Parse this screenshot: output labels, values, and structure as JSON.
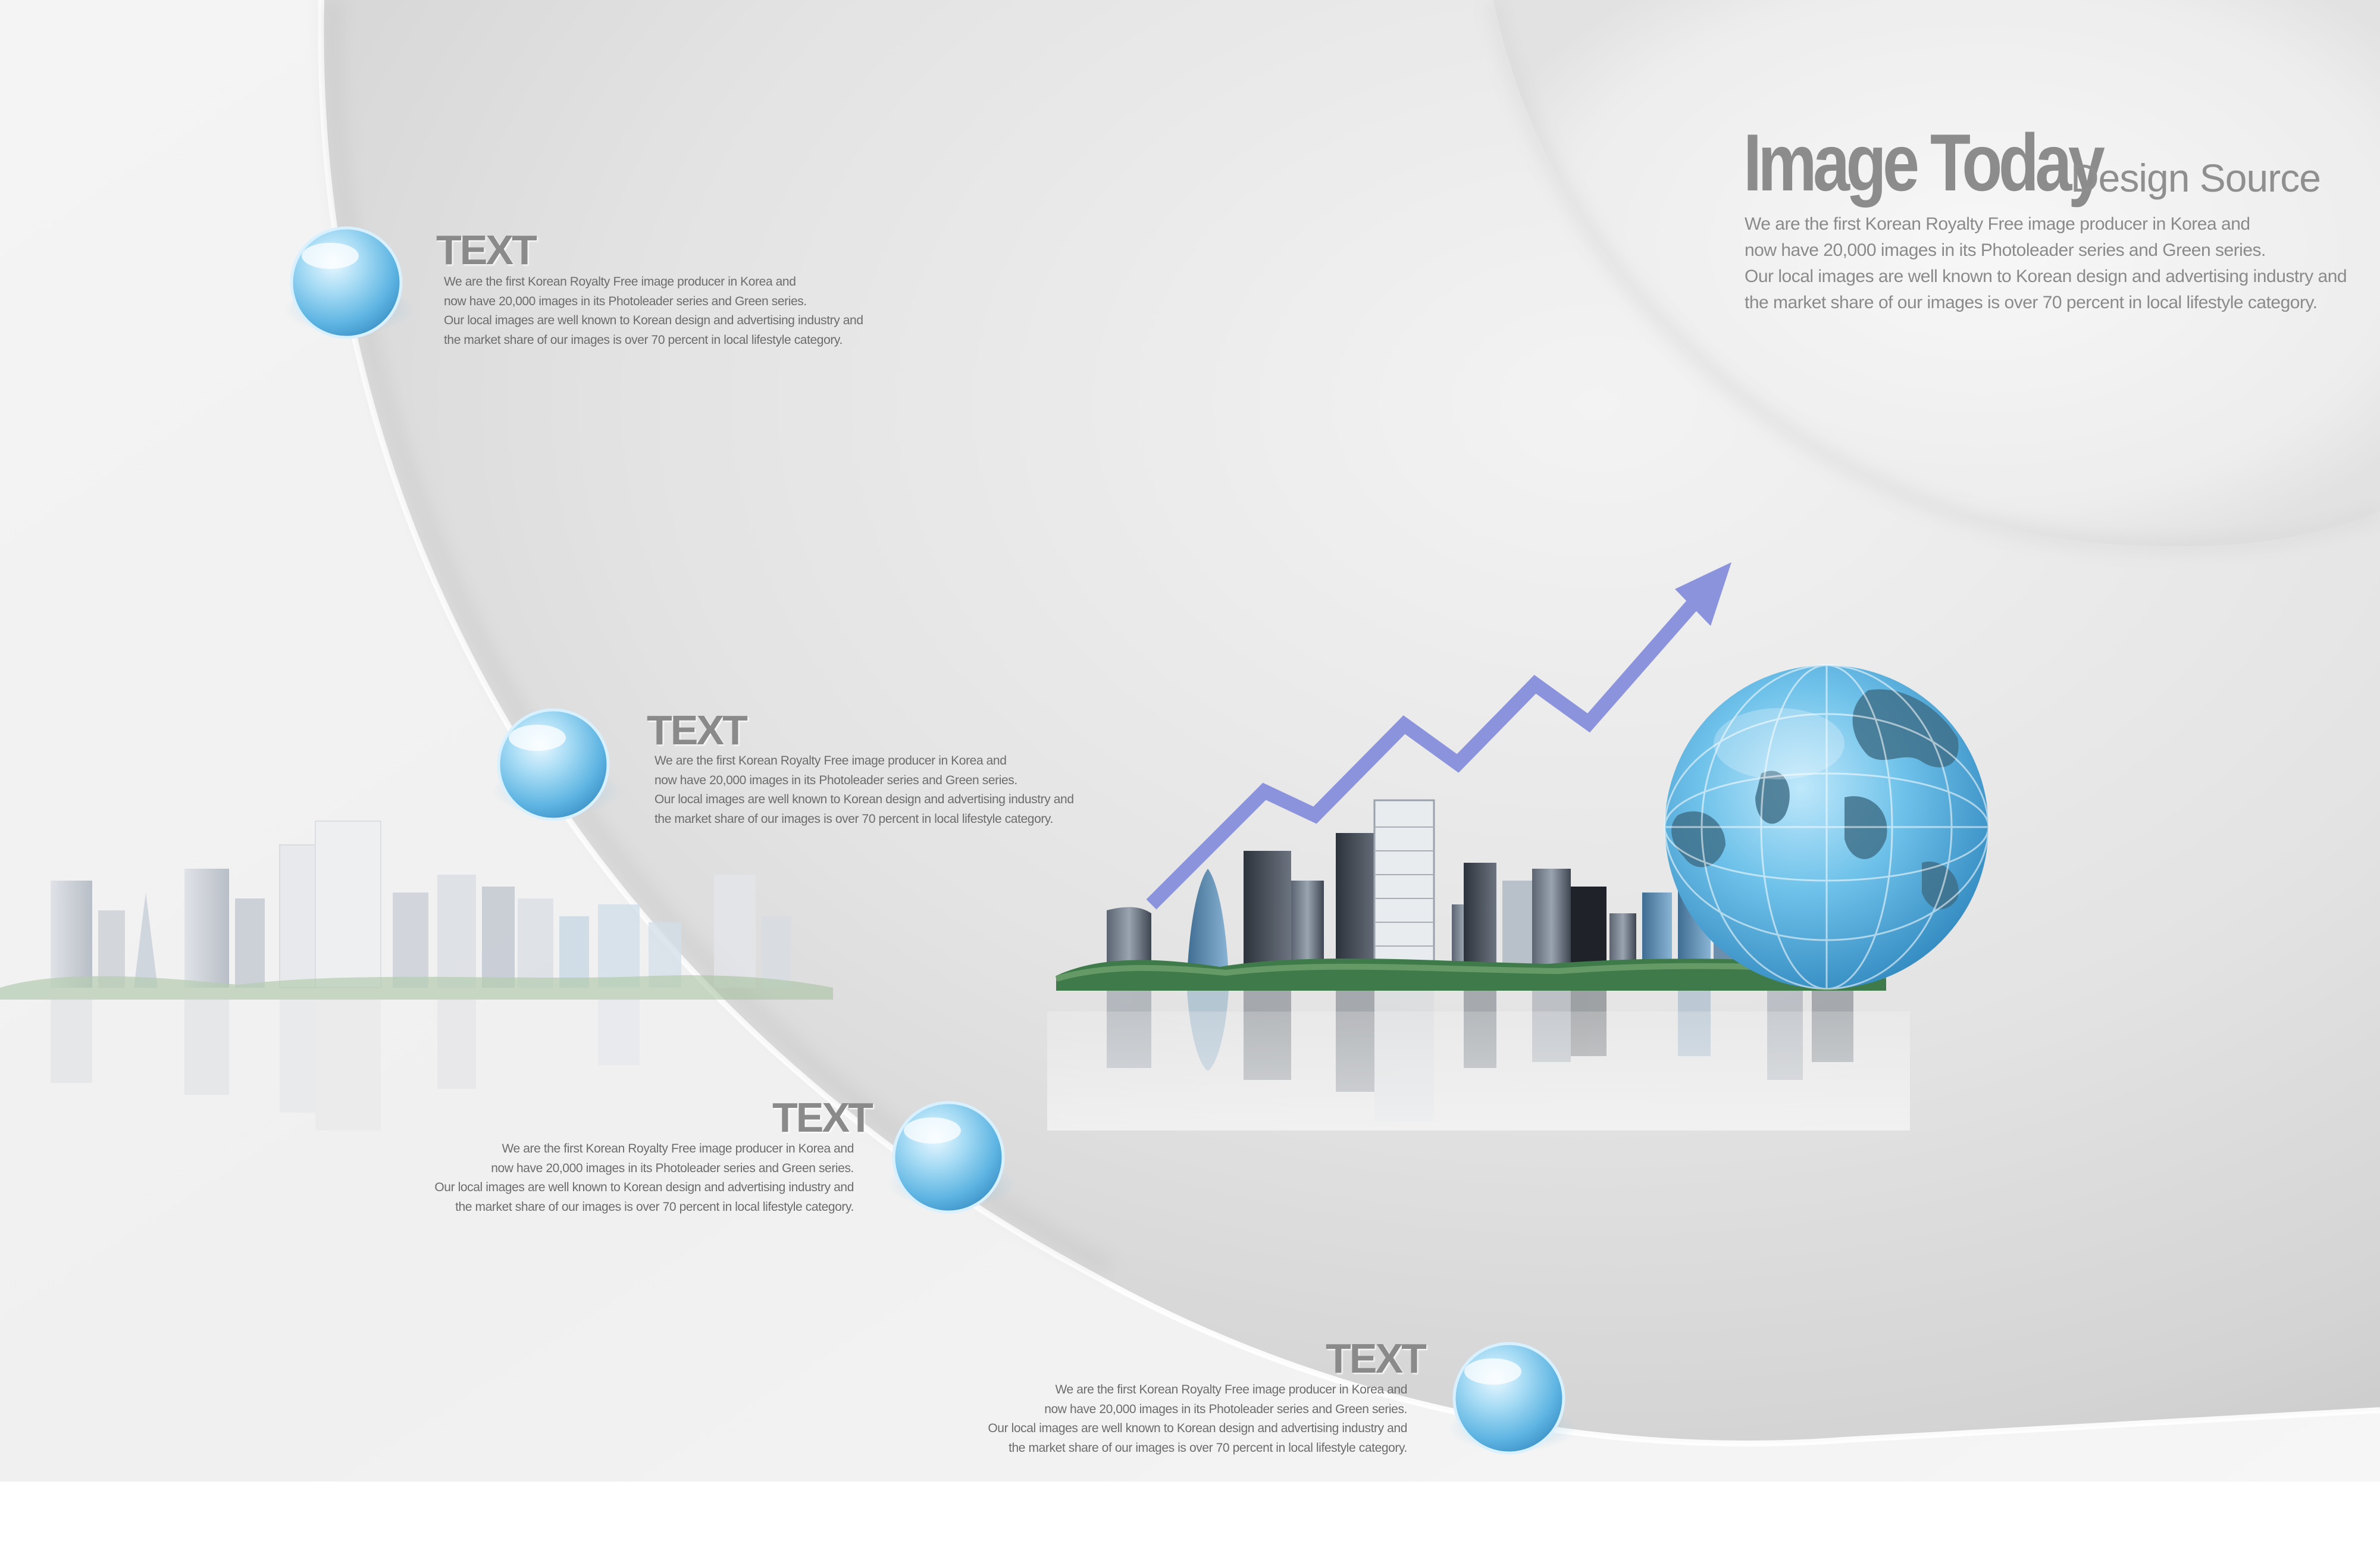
{
  "brand": {
    "title": "Image Today",
    "subtitle": "Design Source",
    "description": [
      "We are the first Korean Royalty Free image producer in Korea and",
      "now have 20,000 images in its Photoleader series and Green series.",
      "Our local images are well known to Korean design and advertising industry and",
      "the market share of our images is over 70 percent in local lifestyle category."
    ]
  },
  "items": [
    {
      "heading": "TEXT",
      "lines": [
        "We are the first Korean Royalty Free image producer in Korea and",
        "now have 20,000 images in its Photoleader series and Green series.",
        "Our local images are well known to Korean design and advertising industry and",
        "the market share of our images is over 70 percent in local lifestyle category."
      ]
    },
    {
      "heading": "TEXT",
      "lines": [
        "We are the first Korean Royalty Free image producer in Korea and",
        "now have 20,000 images in its Photoleader series and Green series.",
        "Our local images are well known to Korean design and advertising industry and",
        "the market share of our images is over 70 percent in local lifestyle category."
      ]
    },
    {
      "heading": "TEXT",
      "lines": [
        "We are the first Korean Royalty Free image producer in Korea and",
        "now have 20,000 images in its Photoleader series and Green series.",
        "Our local images are well known to Korean design and advertising industry and",
        "the market share of our images is over 70 percent in local lifestyle category."
      ]
    },
    {
      "heading": "TEXT",
      "lines": [
        "We are the first Korean Royalty Free image producer in Korea and",
        "now have 20,000 images in its Photoleader series and Green series.",
        "Our local images are well known to Korean design and advertising industry and",
        "the market share of our images is over 70 percent in local lifestyle category."
      ]
    }
  ],
  "colors": {
    "arrow": "#8b93dd",
    "bubble": "#7fc6ec",
    "globe": "#4aa9d6",
    "text": "#6c6c6c",
    "heading": "#8a8a8a"
  }
}
